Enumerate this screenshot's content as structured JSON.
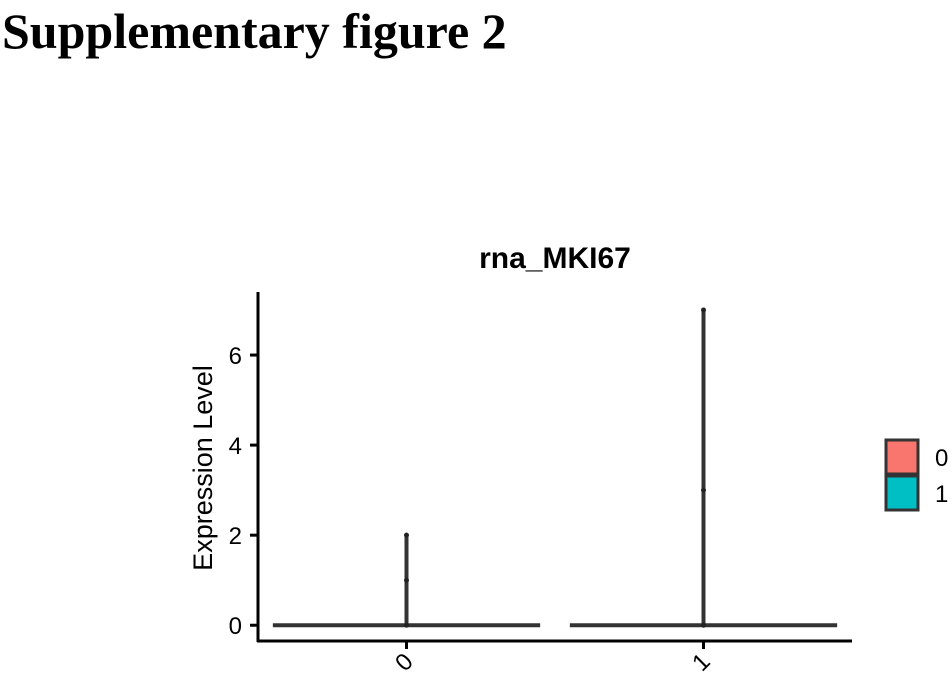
{
  "page_title": "Supplementary figure 2",
  "chart_data": {
    "type": "violin",
    "title": "rna_MKI67",
    "y_label": "Expression Level",
    "categories": [
      "0",
      "1"
    ],
    "series": [
      {
        "name": "0",
        "color": "#F8766D",
        "values": [
          0,
          1,
          2
        ]
      },
      {
        "name": "1",
        "color": "#00BFC4",
        "values": [
          0,
          3,
          7
        ]
      }
    ],
    "ylim": [
      -0.35,
      7.4
    ],
    "yticks": [
      0,
      2,
      4,
      6
    ]
  }
}
